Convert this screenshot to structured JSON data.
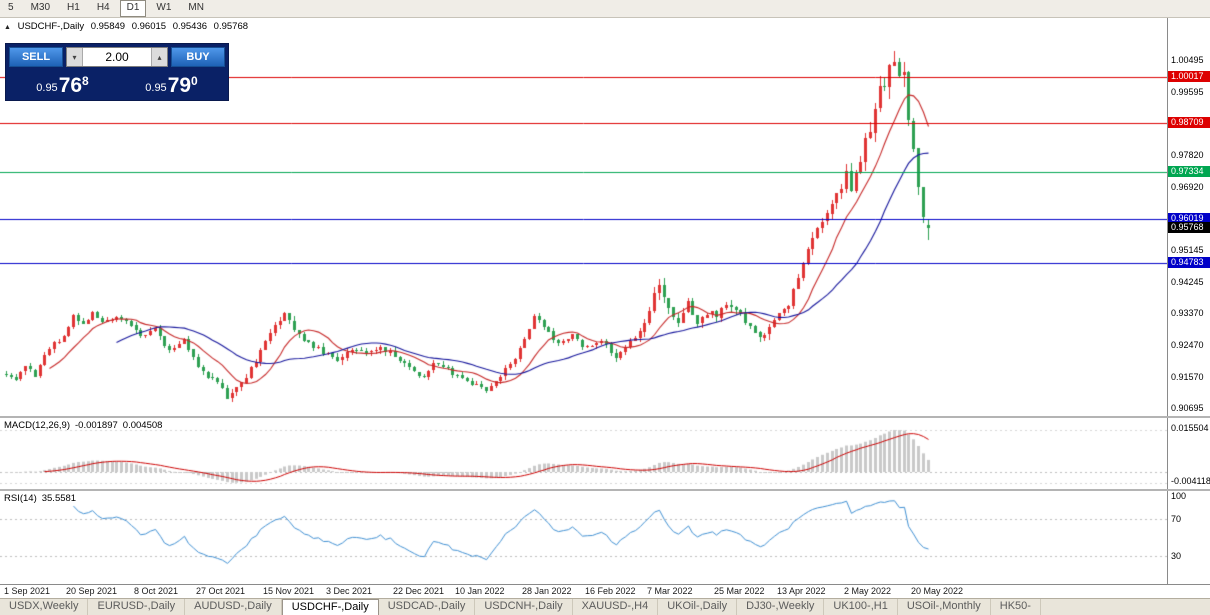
{
  "toolbar": {
    "timeframes": [
      "5",
      "M30",
      "H1",
      "H4",
      "D1",
      "W1",
      "MN"
    ],
    "active": "D1"
  },
  "chart": {
    "title": {
      "symbol_period": "USDCHF-,Daily",
      "open": "0.95849",
      "high": "0.96015",
      "low": "0.95436",
      "close": "0.95768"
    },
    "trade_panel": {
      "sell_label": "SELL",
      "buy_label": "BUY",
      "lot_size": "2.00",
      "sell_price_small": "0.95",
      "sell_price_big": "76",
      "sell_price_sup": "8",
      "buy_price_small": "0.95",
      "buy_price_big": "79",
      "buy_price_sup": "0",
      "panel_bg": "#0a2166",
      "button_color": "#2e78d2"
    },
    "price_axis": {
      "price_min": 0.9047,
      "price_max": 1.0168,
      "ticks": [
        1.00495,
        0.99595,
        0.9782,
        0.9692,
        0.95145,
        0.94245,
        0.9337,
        0.9247,
        0.9157,
        0.90695
      ]
    },
    "hlines": [
      {
        "price": 1.00017,
        "color": "#dd0000"
      },
      {
        "price": 0.98709,
        "color": "#dd0000"
      },
      {
        "price": 0.97334,
        "color": "#00a651"
      },
      {
        "price": 0.96019,
        "color": "#0000c8"
      },
      {
        "price": 0.94783,
        "color": "#0000c8"
      }
    ],
    "current_price": 0.95768,
    "candles": {
      "count": 193,
      "up_color": "#e03434",
      "down_color": "#2ea052",
      "last_bar": {
        "o": 0.95849,
        "h": 0.96015,
        "l": 0.95436,
        "c": 0.95768
      },
      "anchors": [
        [
          0,
          0.9168
        ],
        [
          2,
          0.915
        ],
        [
          4,
          0.9188
        ],
        [
          6,
          0.9165
        ],
        [
          9,
          0.924
        ],
        [
          12,
          0.9275
        ],
        [
          14,
          0.933
        ],
        [
          16,
          0.93
        ],
        [
          18,
          0.9345
        ],
        [
          20,
          0.931
        ],
        [
          23,
          0.933
        ],
        [
          26,
          0.93
        ],
        [
          28,
          0.927
        ],
        [
          31,
          0.9292
        ],
        [
          34,
          0.923
        ],
        [
          37,
          0.9262
        ],
        [
          40,
          0.9185
        ],
        [
          43,
          0.915
        ],
        [
          46,
          0.9105
        ],
        [
          48,
          0.9128
        ],
        [
          51,
          0.918
        ],
        [
          54,
          0.9252
        ],
        [
          56,
          0.9302
        ],
        [
          58,
          0.9342
        ],
        [
          60,
          0.929
        ],
        [
          63,
          0.9252
        ],
        [
          66,
          0.9225
        ],
        [
          69,
          0.9202
        ],
        [
          72,
          0.9238
        ],
        [
          75,
          0.9225
        ],
        [
          78,
          0.9242
        ],
        [
          81,
          0.9215
        ],
        [
          84,
          0.9185
        ],
        [
          87,
          0.9155
        ],
        [
          89,
          0.92
        ],
        [
          92,
          0.9175
        ],
        [
          94,
          0.9162
        ],
        [
          97,
          0.9135
        ],
        [
          100,
          0.9122
        ],
        [
          103,
          0.9158
        ],
        [
          106,
          0.9212
        ],
        [
          108,
          0.9268
        ],
        [
          110,
          0.9322
        ],
        [
          112,
          0.93
        ],
        [
          115,
          0.9252
        ],
        [
          118,
          0.9272
        ],
        [
          121,
          0.9238
        ],
        [
          124,
          0.9262
        ],
        [
          127,
          0.9218
        ],
        [
          130,
          0.9255
        ],
        [
          132,
          0.9282
        ],
        [
          134,
          0.9352
        ],
        [
          136,
          0.9422
        ],
        [
          138,
          0.9342
        ],
        [
          140,
          0.9302
        ],
        [
          142,
          0.9362
        ],
        [
          144,
          0.9312
        ],
        [
          146,
          0.9342
        ],
        [
          148,
          0.933
        ],
        [
          150,
          0.9368
        ],
        [
          152,
          0.9342
        ],
        [
          155,
          0.9302
        ],
        [
          157,
          0.9268
        ],
        [
          159,
          0.9292
        ],
        [
          161,
          0.933
        ],
        [
          163,
          0.9362
        ],
        [
          165,
          0.9432
        ],
        [
          167,
          0.9512
        ],
        [
          169,
          0.9572
        ],
        [
          171,
          0.9622
        ],
        [
          173,
          0.9662
        ],
        [
          175,
          0.9722
        ],
        [
          176,
          0.9682
        ],
        [
          178,
          0.9762
        ],
        [
          180,
          0.9862
        ],
        [
          182,
          0.9962
        ],
        [
          184,
          1.0022
        ],
        [
          185,
          1.0048
        ],
        [
          186,
          0.9988
        ],
        [
          187,
          1.0018
        ],
        [
          188,
          0.9892
        ],
        [
          189,
          0.9792
        ],
        [
          190,
          0.97
        ],
        [
          191,
          0.9612
        ],
        [
          192,
          0.95768
        ]
      ],
      "vol_anchors": [
        [
          0,
          0.0016
        ],
        [
          40,
          0.0016
        ],
        [
          46,
          0.0021
        ],
        [
          60,
          0.0018
        ],
        [
          100,
          0.0015
        ],
        [
          132,
          0.0018
        ],
        [
          136,
          0.0034
        ],
        [
          140,
          0.0022
        ],
        [
          162,
          0.002
        ],
        [
          170,
          0.003
        ],
        [
          180,
          0.0042
        ],
        [
          186,
          0.005
        ],
        [
          192,
          0.004
        ]
      ]
    },
    "ma": [
      {
        "period": 10,
        "color": "#c62828"
      },
      {
        "period": 24,
        "color": "#16169c"
      }
    ]
  },
  "macd": {
    "name": "MACD(12,26,9)",
    "value_main": "-0.001897",
    "value_signal": "0.004508",
    "axis_max": "0.015504",
    "axis_min": "-0.004118",
    "hist_color": "#c9c9c9",
    "signal_color": "#cc0000",
    "fast": 12,
    "slow": 26,
    "signal": 9
  },
  "rsi": {
    "name": "RSI(14)",
    "value": "35.5581",
    "period": 14,
    "levels": [
      100,
      70,
      30
    ],
    "line_color": "#3f8fd2"
  },
  "date_axis": [
    {
      "label": "1 Sep 2021",
      "bar": 0
    },
    {
      "label": "20 Sep 2021",
      "bar": 13
    },
    {
      "label": "8 Oct 2021",
      "bar": 27
    },
    {
      "label": "27 Oct 2021",
      "bar": 40
    },
    {
      "label": "15 Nov 2021",
      "bar": 54
    },
    {
      "label": "3 Dec 2021",
      "bar": 67
    },
    {
      "label": "22 Dec 2021",
      "bar": 81
    },
    {
      "label": "10 Jan 2022",
      "bar": 94
    },
    {
      "label": "28 Jan 2022",
      "bar": 108
    },
    {
      "label": "16 Feb 2022",
      "bar": 121
    },
    {
      "label": "7 Mar 2022",
      "bar": 134
    },
    {
      "label": "25 Mar 2022",
      "bar": 148
    },
    {
      "label": "13 Apr 2022",
      "bar": 161
    },
    {
      "label": "2 May 2022",
      "bar": 175
    },
    {
      "label": "20 May 2022",
      "bar": 189
    }
  ],
  "tabs": {
    "items": [
      "USDX,Weekly",
      "EURUSD-,Daily",
      "AUDUSD-,Daily",
      "USDCHF-,Daily",
      "USDCAD-,Daily",
      "USDCNH-,Daily",
      "XAUUSD-,H4",
      "UKOil-,Daily",
      "DJ30-,Weekly",
      "UK100-,H1",
      "USOil-,Monthly",
      "HK50-"
    ],
    "active": "USDCHF-,Daily"
  }
}
